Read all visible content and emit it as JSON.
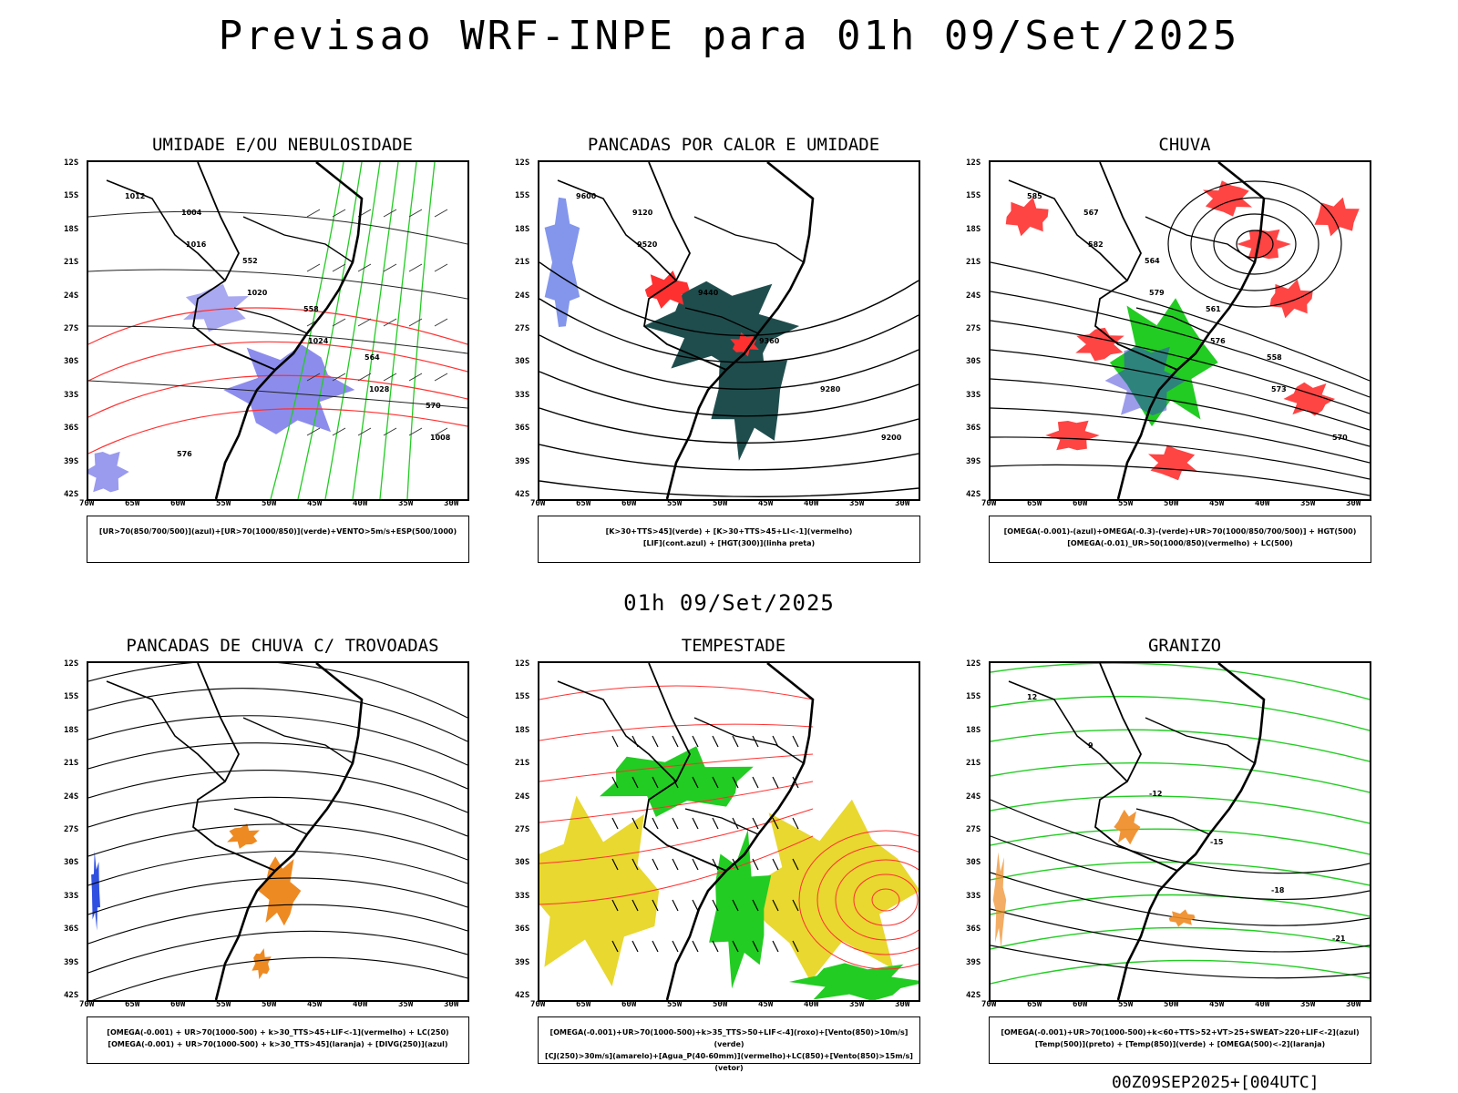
{
  "main_title": "Previsao WRF-INPE  para 01h 09/Set/2025",
  "mid_title": "01h 09/Set/2025",
  "footer_code": "00Z09SEP2025+[004UTC]",
  "colors": {
    "blue": "#6f6fe8",
    "blue_dark": "#3a3ad8",
    "green": "#22cc22",
    "red": "#ff3030",
    "teal": "#1f4d4d",
    "orange": "#ee8a22",
    "yellow": "#e8d830"
  },
  "chart_data": [
    {
      "type": "heatmap",
      "title": "UMIDADE E/OU NEBULOSIDADE",
      "legend": [
        "[UR>70(850/700/500)](azul)+[UR>70(1000/850)](verde)+VENTO>5m/s+ESP(500/1000)"
      ],
      "lat_ticks": [
        "12S",
        "15S",
        "18S",
        "21S",
        "24S",
        "27S",
        "30S",
        "33S",
        "36S",
        "39S",
        "42S"
      ],
      "lon_ticks": [
        "70W",
        "65W",
        "60W",
        "55W",
        "50W",
        "45W",
        "40W",
        "35W",
        "30W"
      ],
      "contour_labels": [
        "1012",
        "1016",
        "1020",
        "1024",
        "1028",
        "1008",
        "1004",
        "552",
        "558",
        "564",
        "570",
        "576"
      ]
    },
    {
      "type": "heatmap",
      "title": "PANCADAS POR CALOR E UMIDADE",
      "legend": [
        "[K>30+TTS>45](verde) + [K>30+TTS>45+LI<-1](vermelho)",
        "[LIF](cont.azul) + [HGT(300)](linha preta)"
      ],
      "lat_ticks": [
        "12S",
        "15S",
        "18S",
        "21S",
        "24S",
        "27S",
        "30S",
        "33S",
        "36S",
        "39S",
        "42S"
      ],
      "lon_ticks": [
        "70W",
        "65W",
        "60W",
        "55W",
        "50W",
        "45W",
        "40W",
        "35W",
        "30W"
      ],
      "contour_labels": [
        "9600",
        "9520",
        "9440",
        "9360",
        "9280",
        "9200",
        "9120"
      ]
    },
    {
      "type": "heatmap",
      "title": "CHUVA",
      "legend": [
        "[OMEGA(-0.001)-(azul)+OMEGA(-0.3)-(verde)+UR>70(1000/850/700/500)] + HGT(500)",
        "[OMEGA(-0.01)_UR>50(1000/850)(vermelho) + LC(500)"
      ],
      "lat_ticks": [
        "12S",
        "15S",
        "18S",
        "21S",
        "24S",
        "27S",
        "30S",
        "33S",
        "36S",
        "39S",
        "42S"
      ],
      "lon_ticks": [
        "70W",
        "65W",
        "60W",
        "55W",
        "50W",
        "45W",
        "40W",
        "35W",
        "30W"
      ],
      "contour_labels": [
        "585",
        "582",
        "579",
        "576",
        "573",
        "570",
        "567",
        "564",
        "561",
        "558"
      ]
    },
    {
      "type": "heatmap",
      "title": "PANCADAS DE CHUVA C/ TROVOADAS",
      "legend": [
        "[OMEGA(-0.001) + UR>70(1000-500) + k>30_TTS>45+LIF<-1](vermelho) + LC(250)",
        "[OMEGA(-0.001) + UR>70(1000-500) + k>30_TTS>45](laranja) + [DIVG(250)](azul)"
      ],
      "lat_ticks": [
        "12S",
        "15S",
        "18S",
        "21S",
        "24S",
        "27S",
        "30S",
        "33S",
        "36S",
        "39S",
        "42S"
      ],
      "lon_ticks": [
        "70W",
        "65W",
        "60W",
        "55W",
        "50W",
        "45W",
        "40W",
        "35W",
        "30W"
      ],
      "contour_labels": []
    },
    {
      "type": "heatmap",
      "title": "TEMPESTADE",
      "legend": [
        "[OMEGA(-0.001)+UR>70(1000-500)+k>35_TTS>50+LIF<-4](roxo)+[Vento(850)>10m/s](verde)",
        "[CJ(250)>30m/s](amarelo)+[Agua_P(40-60mm)](vermelho)+LC(850)+[Vento(850)>15m/s](vetor)"
      ],
      "lat_ticks": [
        "12S",
        "15S",
        "18S",
        "21S",
        "24S",
        "27S",
        "30S",
        "33S",
        "36S",
        "39S",
        "42S"
      ],
      "lon_ticks": [
        "70W",
        "65W",
        "60W",
        "55W",
        "50W",
        "45W",
        "40W",
        "35W",
        "30W"
      ],
      "contour_labels": []
    },
    {
      "type": "heatmap",
      "title": "GRANIZO",
      "legend": [
        "[OMEGA(-0.001)+UR>70(1000-500)+k<60+TTS>52+VT>25+SWEAT>220+LIF<-2](azul)",
        "[Temp(500)](preto) + [Temp(850)](verde) + [OMEGA(500)<-2](laranja)"
      ],
      "lat_ticks": [
        "12S",
        "15S",
        "18S",
        "21S",
        "24S",
        "27S",
        "30S",
        "33S",
        "36S",
        "39S",
        "42S"
      ],
      "lon_ticks": [
        "70W",
        "65W",
        "60W",
        "55W",
        "50W",
        "45W",
        "40W",
        "35W",
        "30W"
      ],
      "contour_labels": [
        "12",
        "9",
        "-12",
        "-15",
        "-18",
        "-21"
      ]
    }
  ]
}
